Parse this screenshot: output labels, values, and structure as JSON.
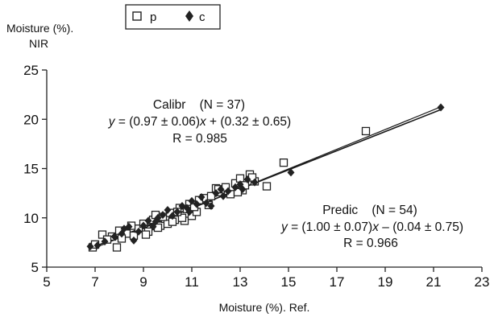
{
  "chart_data": {
    "type": "scatter",
    "xlabel": "Moisture (%). Ref.",
    "ylabel_line1": "Moisture (%).",
    "ylabel_line2": "NIR",
    "xlim": [
      5,
      23
    ],
    "ylim": [
      5,
      25
    ],
    "xticks": [
      5,
      7,
      9,
      11,
      13,
      15,
      17,
      19,
      21,
      23
    ],
    "yticks": [
      5,
      10,
      15,
      20,
      25
    ],
    "grid": false,
    "legend_position": "top-left",
    "series": [
      {
        "name": "p",
        "marker": "open-square",
        "color": "#222222",
        "points": [
          [
            6.9,
            7.0
          ],
          [
            7.3,
            8.3
          ],
          [
            7.7,
            8.1
          ],
          [
            7.9,
            7.0
          ],
          [
            8.0,
            8.7
          ],
          [
            8.3,
            8.4
          ],
          [
            8.6,
            8.2
          ],
          [
            8.8,
            8.9
          ],
          [
            9.0,
            9.4
          ],
          [
            9.2,
            8.6
          ],
          [
            9.4,
            9.8
          ],
          [
            9.5,
            10.3
          ],
          [
            9.7,
            9.2
          ],
          [
            9.9,
            9.9
          ],
          [
            10.0,
            9.4
          ],
          [
            10.1,
            10.5
          ],
          [
            10.3,
            9.8
          ],
          [
            10.5,
            11.0
          ],
          [
            10.7,
            9.7
          ],
          [
            10.9,
            11.4
          ],
          [
            11.0,
            10.2
          ],
          [
            11.2,
            10.6
          ],
          [
            11.5,
            12.0
          ],
          [
            11.7,
            11.3
          ],
          [
            12.0,
            13.0
          ],
          [
            12.2,
            12.6
          ],
          [
            12.6,
            12.4
          ],
          [
            12.8,
            13.5
          ],
          [
            13.0,
            14.0
          ],
          [
            13.1,
            12.8
          ],
          [
            13.4,
            14.4
          ],
          [
            13.6,
            13.7
          ],
          [
            14.1,
            13.2
          ],
          [
            14.8,
            15.6
          ],
          [
            18.2,
            18.8
          ],
          [
            7.5,
            7.8
          ],
          [
            8.5,
            9.2
          ],
          [
            9.8,
            10.1
          ],
          [
            10.6,
            10.0
          ],
          [
            11.8,
            12.2
          ],
          [
            12.4,
            13.1
          ],
          [
            13.2,
            13.3
          ],
          [
            9.1,
            8.3
          ],
          [
            10.2,
            9.6
          ],
          [
            11.3,
            11.8
          ],
          [
            12.9,
            12.6
          ],
          [
            8.1,
            7.9
          ],
          [
            10.8,
            10.9
          ],
          [
            13.5,
            14.1
          ],
          [
            7.0,
            7.3
          ],
          [
            9.6,
            9.0
          ],
          [
            11.1,
            11.1
          ],
          [
            12.1,
            12.9
          ],
          [
            10.4,
            10.6
          ]
        ]
      },
      {
        "name": "c",
        "marker": "filled-diamond",
        "color": "#222222",
        "points": [
          [
            6.8,
            7.1
          ],
          [
            7.1,
            7.2
          ],
          [
            7.4,
            7.6
          ],
          [
            7.8,
            8.1
          ],
          [
            8.1,
            8.4
          ],
          [
            8.4,
            9.1
          ],
          [
            8.6,
            7.7
          ],
          [
            8.8,
            8.6
          ],
          [
            9.0,
            9.2
          ],
          [
            9.2,
            9.7
          ],
          [
            9.4,
            9.1
          ],
          [
            9.6,
            10.0
          ],
          [
            9.8,
            10.3
          ],
          [
            10.0,
            10.8
          ],
          [
            10.2,
            10.2
          ],
          [
            10.4,
            10.6
          ],
          [
            10.6,
            11.2
          ],
          [
            10.8,
            11.0
          ],
          [
            11.0,
            11.7
          ],
          [
            11.2,
            11.4
          ],
          [
            11.4,
            12.1
          ],
          [
            11.6,
            11.5
          ],
          [
            11.8,
            11.2
          ],
          [
            12.0,
            12.5
          ],
          [
            12.2,
            12.9
          ],
          [
            12.5,
            12.7
          ],
          [
            12.8,
            13.1
          ],
          [
            13.0,
            13.4
          ],
          [
            13.3,
            13.9
          ],
          [
            13.6,
            13.6
          ],
          [
            15.1,
            14.6
          ],
          [
            21.3,
            21.2
          ],
          [
            8.2,
            8.9
          ],
          [
            9.5,
            9.6
          ],
          [
            10.9,
            10.6
          ],
          [
            12.3,
            12.2
          ],
          [
            13.1,
            12.9
          ]
        ]
      }
    ],
    "fit_lines": [
      {
        "name": "Calibr",
        "slope": 0.97,
        "intercept": 0.32,
        "x_range": [
          6.8,
          21.3
        ]
      },
      {
        "name": "Predic",
        "slope": 1.0,
        "intercept": -0.04,
        "x_range": [
          6.8,
          21.3
        ]
      }
    ],
    "annotations": {
      "calibr": {
        "line1": "Calibr    (N = 37)",
        "line2_y": "y",
        "line2_mid": " = (0.97 ± 0.06)",
        "line2_x": "x",
        "line2_end": " + (0.32 ± 0.65)",
        "line3": "R = 0.985"
      },
      "predic": {
        "line1": "Predic    (N = 54)",
        "line2_y": "y",
        "line2_mid": " = (1.00 ± 0.07)",
        "line2_x": "x",
        "line2_end": " – (0.04 ± 0.75)",
        "line3": "R = 0.966"
      }
    }
  }
}
